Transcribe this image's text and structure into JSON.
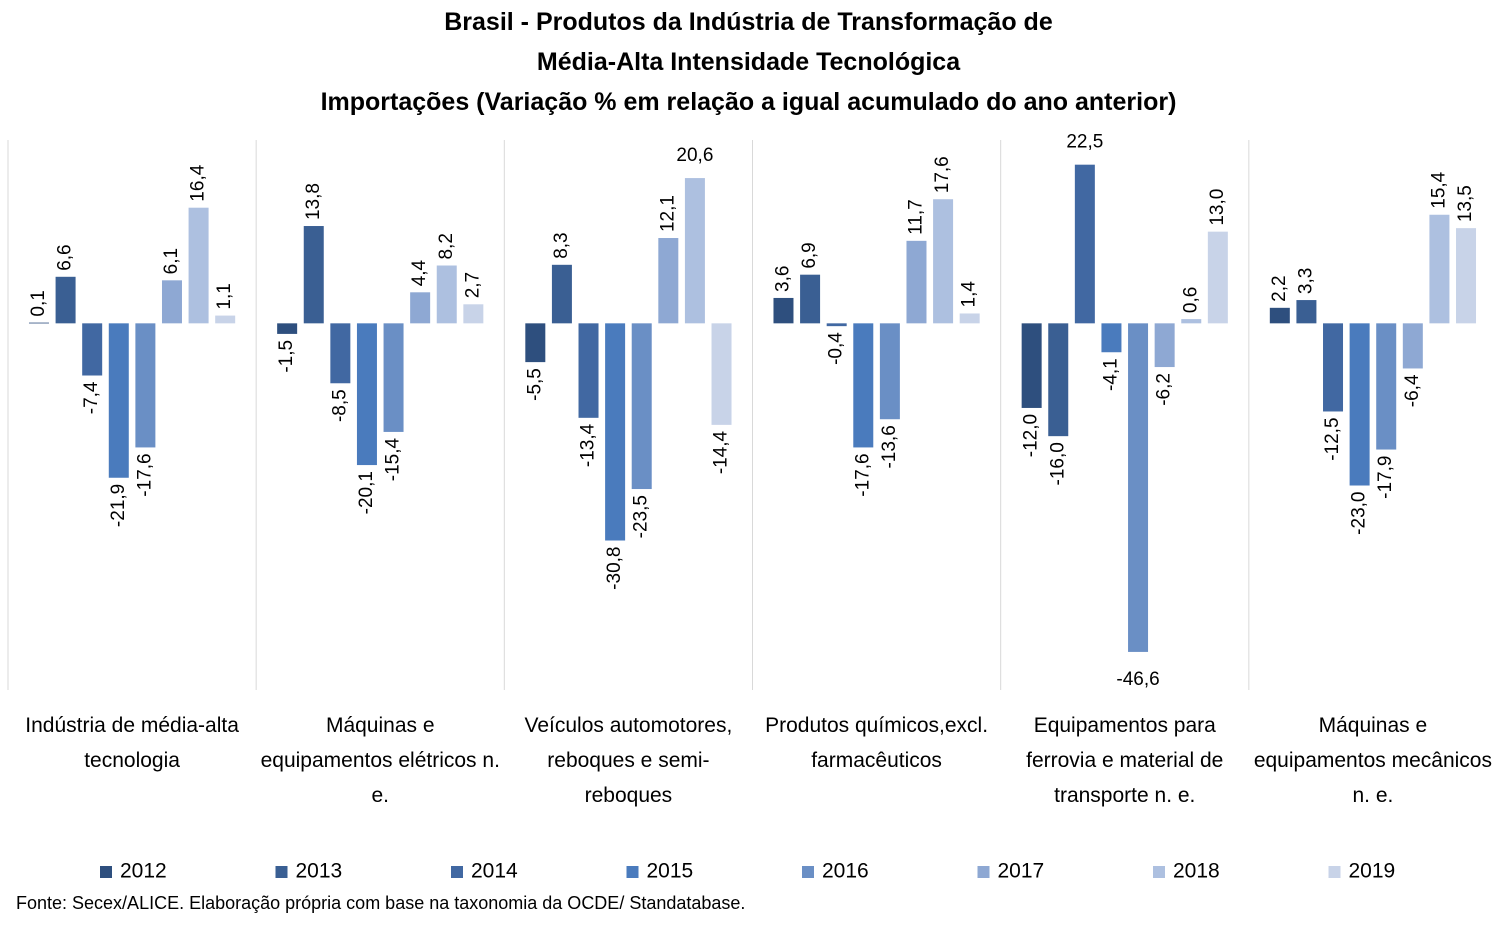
{
  "chart_data": {
    "type": "bar",
    "title": [
      "Brasil - Produtos da Indústria de Transformação de",
      "Média-Alta Intensidade Tecnológica"
    ],
    "subtitle": "Importações (Variação % em relação a igual acumulado do ano anterior)",
    "categories": [
      "Indústria de média-alta tecnologia",
      "Máquinas e equipamentos elétricos n. e.",
      "Veículos automotores, reboques e semi-reboques",
      "Produtos químicos,excl. farmacêuticos",
      "Equipamentos para ferrovia e material de transporte n. e.",
      "Máquinas e equipamentos mecânicos  n. e."
    ],
    "ylim": [
      -52,
      26
    ],
    "series": [
      {
        "name": "2012",
        "color": "#2e4f7e",
        "values": [
          0.1,
          -1.5,
          -5.5,
          3.6,
          -12.0,
          2.2
        ],
        "value_labels": [
          "0,1",
          "-1,5",
          "-5,5",
          "3,6",
          "-12,0",
          "2,2"
        ]
      },
      {
        "name": "2013",
        "color": "#3a5f93",
        "values": [
          6.6,
          13.8,
          8.3,
          6.9,
          -16.0,
          3.3
        ],
        "value_labels": [
          "6,6",
          "13,8",
          "8,3",
          "6,9",
          "-16,0",
          "3,3"
        ]
      },
      {
        "name": "2014",
        "color": "#4168a2",
        "values": [
          -7.4,
          -8.5,
          -13.4,
          -0.4,
          22.5,
          -12.5
        ],
        "value_labels": [
          "-7,4",
          "-8,5",
          "-13,4",
          "-0,4",
          "22,5",
          "-12,5"
        ]
      },
      {
        "name": "2015",
        "color": "#4a7bbd",
        "values": [
          -21.9,
          -20.1,
          -30.8,
          -17.6,
          -4.1,
          -23.0
        ],
        "value_labels": [
          "-21,9",
          "-20,1",
          "-30,8",
          "-17,6",
          "-4,1",
          "-23,0"
        ]
      },
      {
        "name": "2016",
        "color": "#6a8fc5",
        "values": [
          -17.6,
          -15.4,
          -23.5,
          -13.6,
          -46.6,
          -17.9
        ],
        "value_labels": [
          "-17,6",
          "-15,4",
          "-23,5",
          "-13,6",
          "-46,6",
          "-17,9"
        ]
      },
      {
        "name": "2017",
        "color": "#8ea8d3",
        "values": [
          6.1,
          4.4,
          12.1,
          11.7,
          -6.2,
          -6.4
        ],
        "value_labels": [
          "6,1",
          "4,4",
          "12,1",
          "11,7",
          "-6,2",
          "-6,4"
        ]
      },
      {
        "name": "2018",
        "color": "#adc0e0",
        "values": [
          16.4,
          8.2,
          20.6,
          17.6,
          0.6,
          15.4
        ],
        "value_labels": [
          "16,4",
          "8,2",
          "20,6",
          "17,6",
          "0,6",
          "15,4"
        ]
      },
      {
        "name": "2019",
        "color": "#c8d3e8",
        "values": [
          1.1,
          2.7,
          -14.4,
          1.4,
          13.0,
          13.5
        ],
        "value_labels": [
          "1,1",
          "2,7",
          "-14,4",
          "1,4",
          "13,0",
          "13,5"
        ]
      }
    ],
    "legend": "bottom",
    "source": "Fonte: Secex/ALICE. Elaboração própria com base na taxonomia da OCDE/ Standatabase."
  }
}
